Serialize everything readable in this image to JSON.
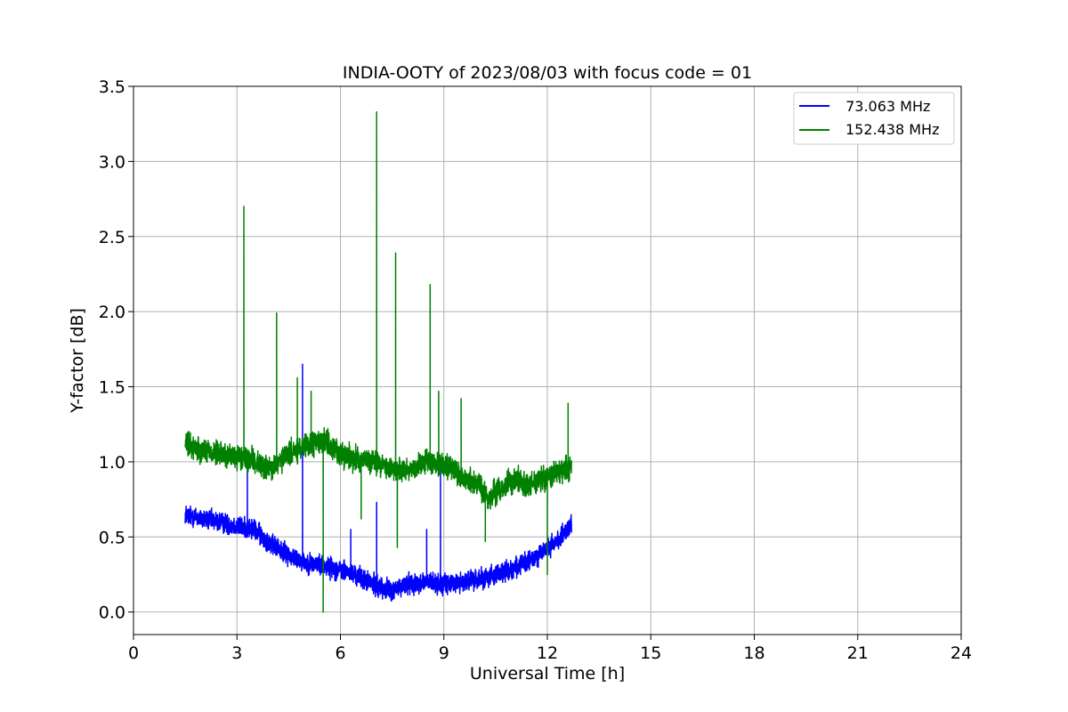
{
  "chart_data": {
    "type": "line",
    "title": "INDIA-OOTY of 2023/08/03 with focus code = 01",
    "xlabel": "Universal Time [h]",
    "ylabel": "Y-factor [dB]",
    "xlim": [
      0,
      24
    ],
    "ylim": [
      -0.15,
      3.5
    ],
    "xticks": [
      0,
      3,
      6,
      9,
      12,
      15,
      18,
      21,
      24
    ],
    "xtick_labels": [
      "0",
      "3",
      "6",
      "9",
      "12",
      "15",
      "18",
      "21",
      "24"
    ],
    "yticks": [
      0.0,
      0.5,
      1.0,
      1.5,
      2.0,
      2.5,
      3.0,
      3.5
    ],
    "ytick_labels": [
      "0.0",
      "0.5",
      "1.0",
      "1.5",
      "2.0",
      "2.5",
      "3.0",
      "3.5"
    ],
    "grid": true,
    "legend_position": "top-right",
    "series": [
      {
        "name": " 73.063 MHz",
        "color": "#0000ff",
        "x": [
          1.5,
          2.0,
          2.5,
          3.0,
          3.5,
          4.0,
          4.5,
          5.0,
          5.5,
          6.0,
          6.5,
          7.0,
          7.5,
          8.0,
          8.5,
          9.0,
          9.5,
          10.0,
          10.5,
          11.0,
          11.5,
          12.0,
          12.5,
          12.7
        ],
        "y": [
          0.65,
          0.62,
          0.6,
          0.57,
          0.55,
          0.45,
          0.38,
          0.33,
          0.31,
          0.28,
          0.24,
          0.18,
          0.14,
          0.19,
          0.2,
          0.18,
          0.2,
          0.22,
          0.25,
          0.29,
          0.34,
          0.42,
          0.52,
          0.58
        ],
        "noise": 0.05,
        "spikes": [
          {
            "x": 3.3,
            "y": 0.95
          },
          {
            "x": 4.9,
            "y": 1.65
          },
          {
            "x": 6.3,
            "y": 0.55
          },
          {
            "x": 7.05,
            "y": 0.73
          },
          {
            "x": 8.5,
            "y": 0.55
          },
          {
            "x": 8.9,
            "y": 1.0
          }
        ]
      },
      {
        "name": "152.438 MHz",
        "color": "#008000",
        "x": [
          1.5,
          2.0,
          2.5,
          3.0,
          3.5,
          4.0,
          4.5,
          5.0,
          5.5,
          6.0,
          6.5,
          7.0,
          7.5,
          8.0,
          8.5,
          9.0,
          9.5,
          10.0,
          10.3,
          10.5,
          11.0,
          11.5,
          12.0,
          12.5,
          12.7
        ],
        "y": [
          1.12,
          1.08,
          1.05,
          1.03,
          1.0,
          0.95,
          1.05,
          1.1,
          1.15,
          1.05,
          1.02,
          1.0,
          0.95,
          0.95,
          1.0,
          0.98,
          0.9,
          0.85,
          0.75,
          0.8,
          0.88,
          0.85,
          0.9,
          0.95,
          0.97
        ],
        "noise": 0.06,
        "spikes": [
          {
            "x": 3.2,
            "y": 2.7
          },
          {
            "x": 4.15,
            "y": 1.99
          },
          {
            "x": 4.75,
            "y": 1.56
          },
          {
            "x": 5.15,
            "y": 1.47
          },
          {
            "x": 7.05,
            "y": 3.33
          },
          {
            "x": 7.6,
            "y": 2.39
          },
          {
            "x": 8.6,
            "y": 2.18
          },
          {
            "x": 8.85,
            "y": 1.47
          },
          {
            "x": 9.5,
            "y": 1.42
          },
          {
            "x": 12.6,
            "y": 1.39
          },
          {
            "x": 5.5,
            "y": 0.0
          },
          {
            "x": 7.65,
            "y": 0.43
          },
          {
            "x": 10.2,
            "y": 0.47
          },
          {
            "x": 12.0,
            "y": 0.25
          },
          {
            "x": 6.6,
            "y": 0.62
          }
        ]
      }
    ]
  }
}
